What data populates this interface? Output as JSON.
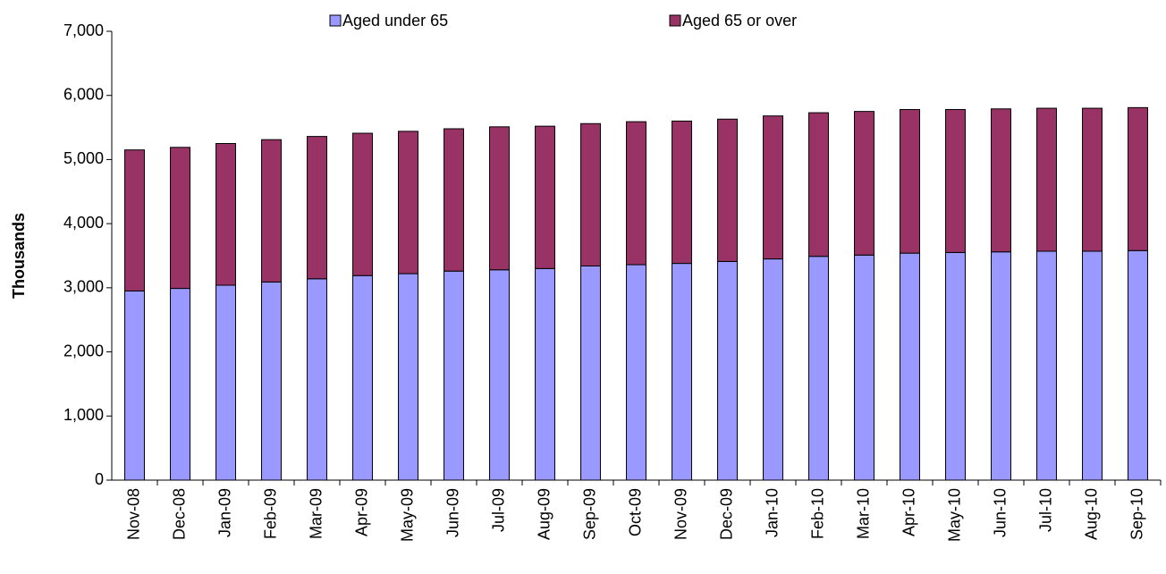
{
  "chart_data": {
    "type": "stacked-bar",
    "y_label": "Thousands",
    "categories": [
      "Nov-08",
      "Dec-08",
      "Jan-09",
      "Feb-09",
      "Mar-09",
      "Apr-09",
      "May-09",
      "Jun-09",
      "Jul-09",
      "Aug-09",
      "Sep-09",
      "Oct-09",
      "Nov-09",
      "Dec-09",
      "Jan-10",
      "Feb-10",
      "Mar-10",
      "Apr-10",
      "May-10",
      "Jun-10",
      "Jul-10",
      "Aug-10",
      "Sep-10"
    ],
    "series": [
      {
        "name": "Aged under 65",
        "color": "#9999ff",
        "values": [
          2950,
          2990,
          3040,
          3090,
          3140,
          3190,
          3220,
          3260,
          3280,
          3300,
          3340,
          3360,
          3380,
          3410,
          3450,
          3490,
          3510,
          3540,
          3550,
          3560,
          3570,
          3570,
          3580
        ]
      },
      {
        "name": "Aged 65 or over",
        "color": "#993366",
        "values": [
          2200,
          2200,
          2210,
          2220,
          2220,
          2220,
          2220,
          2220,
          2230,
          2220,
          2220,
          2230,
          2220,
          2220,
          2230,
          2240,
          2240,
          2240,
          2230,
          2230,
          2230,
          2230,
          2230
        ]
      }
    ],
    "ylim": [
      0,
      7000
    ],
    "yticks": [
      0,
      {
        "value": 1000,
        "label": "1,000"
      },
      {
        "value": 2000,
        "label": "2,000"
      },
      {
        "value": 3000,
        "label": "3,000"
      },
      {
        "value": 4000,
        "label": "4,000"
      },
      {
        "value": 5000,
        "label": "5,000"
      },
      {
        "value": 6000,
        "label": "6,000"
      },
      {
        "value": 7000,
        "label": "7,000"
      }
    ],
    "legend": "top"
  }
}
